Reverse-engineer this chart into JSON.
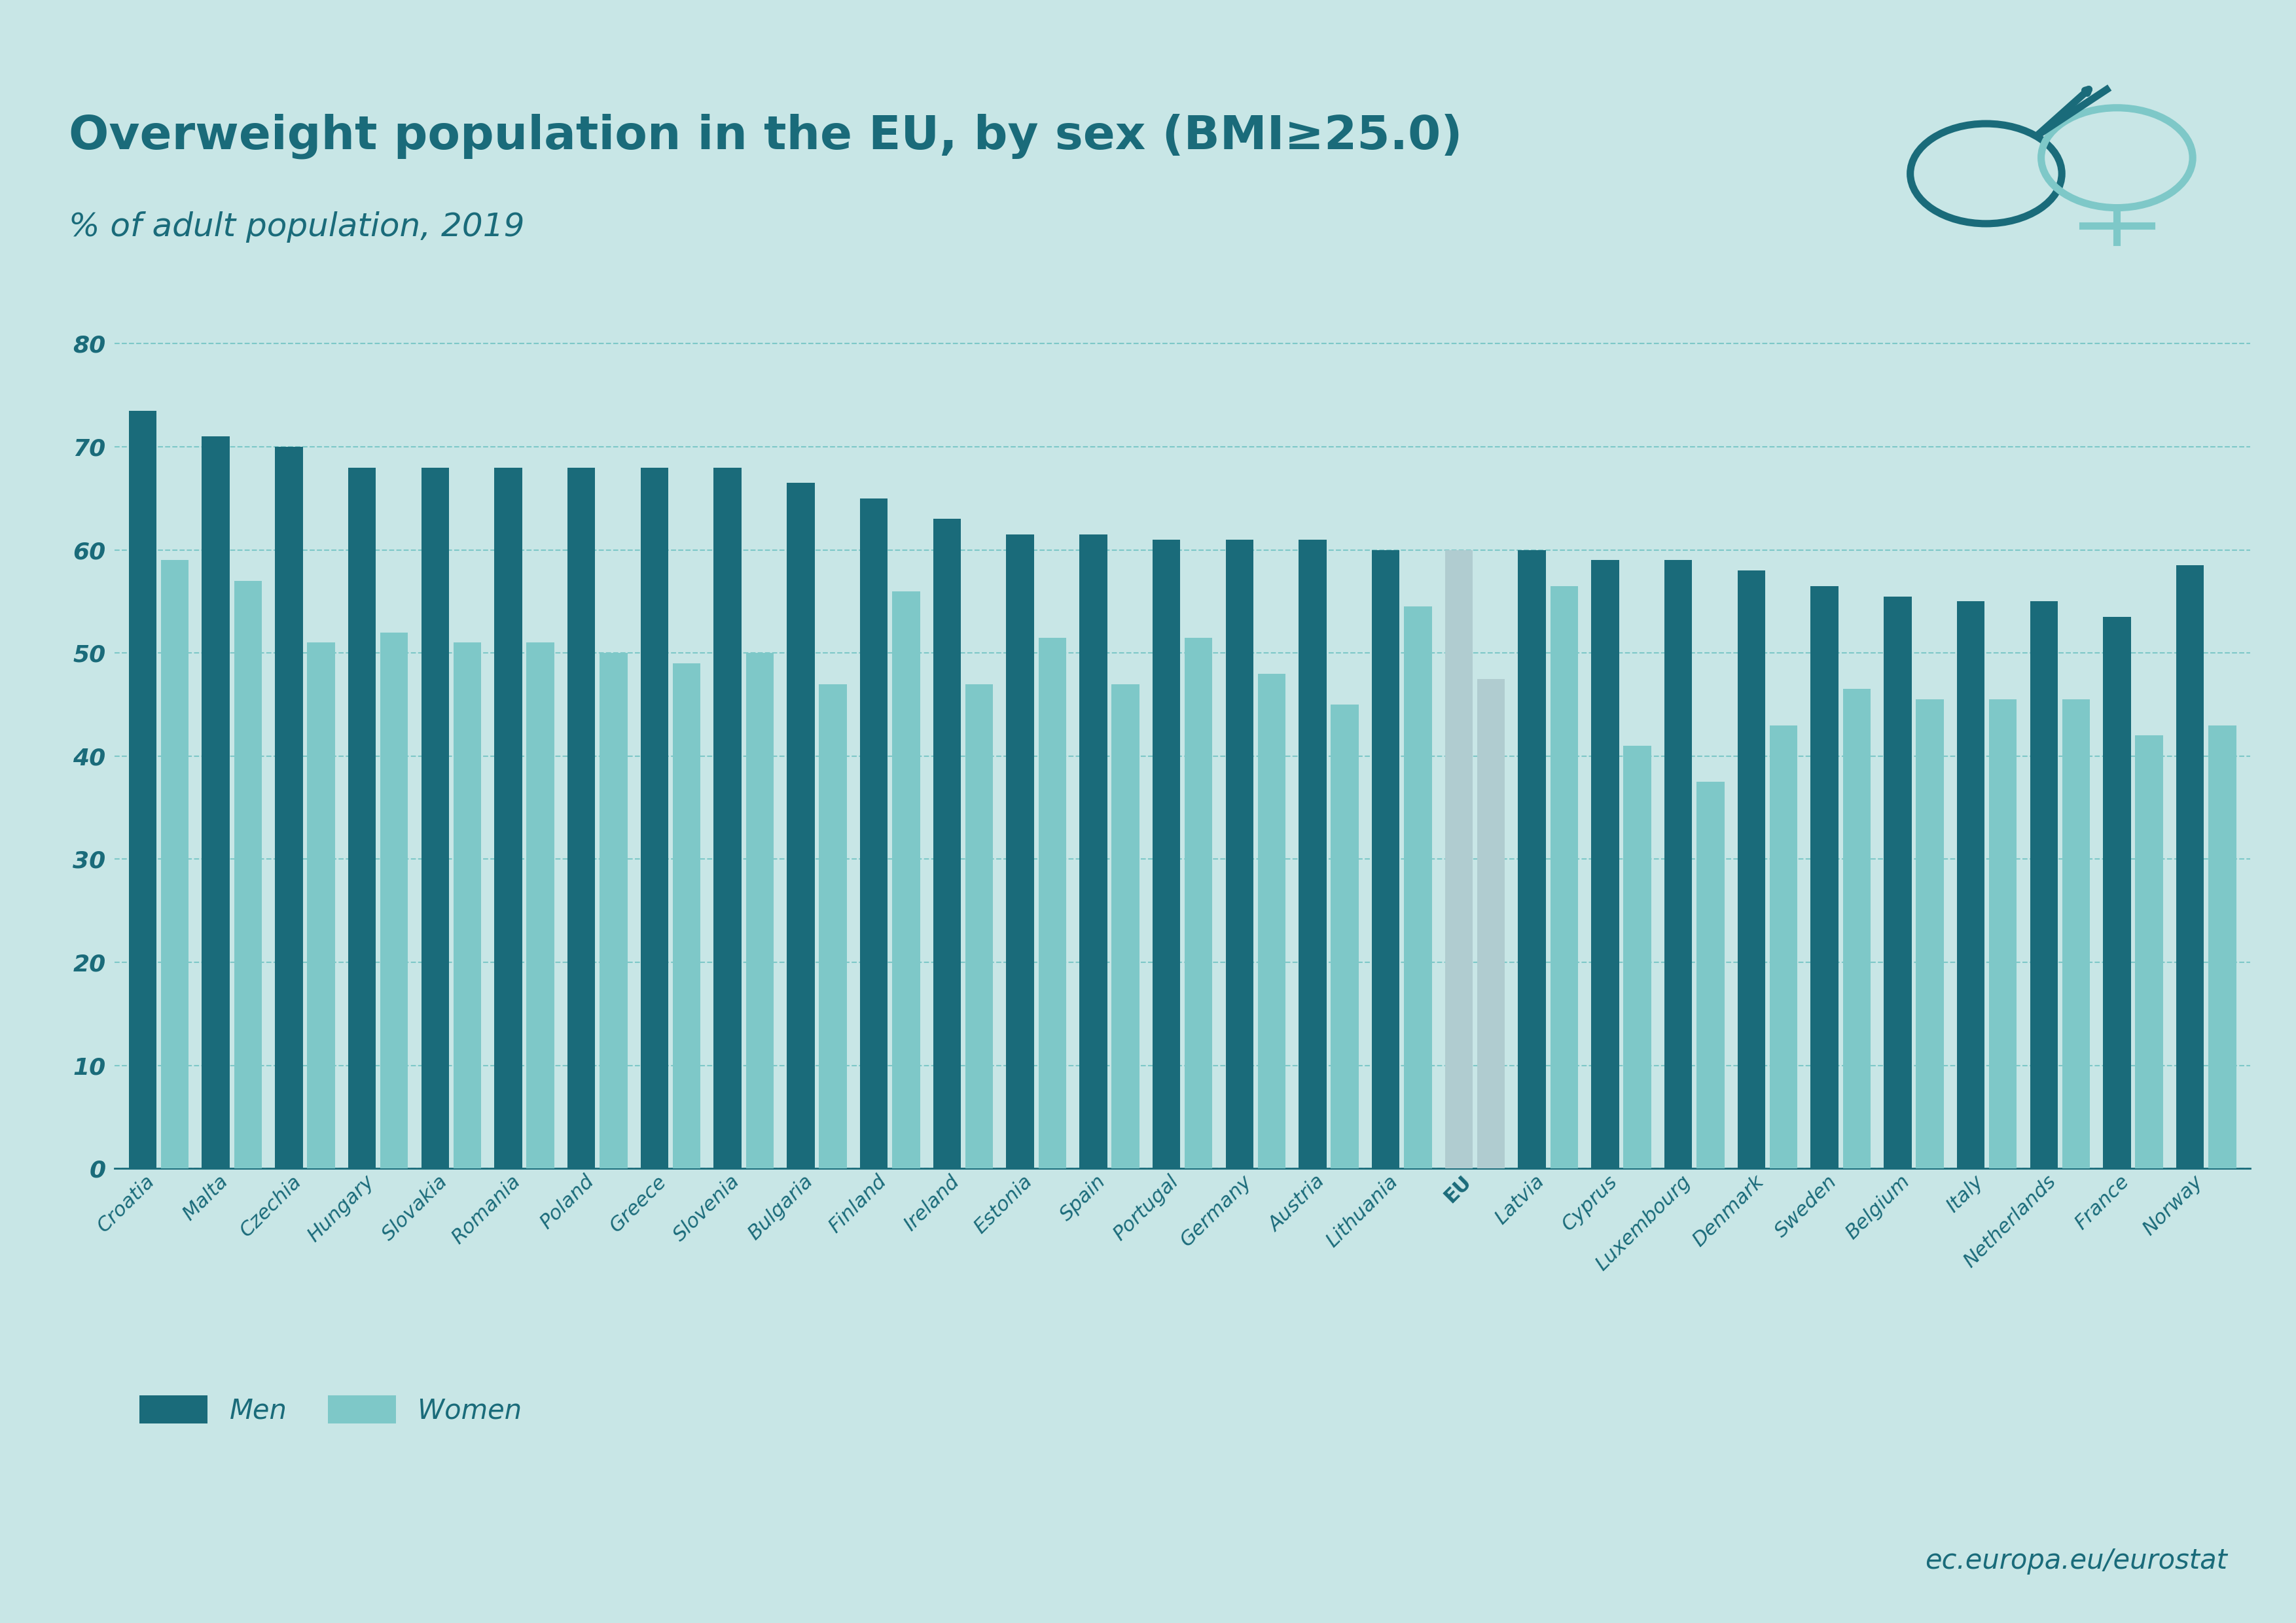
{
  "title": "Overweight population in the EU, by sex (BMI≥25.0)",
  "subtitle": "% of adult population, 2019",
  "background_color": "#c8e6e6",
  "bar_color_men": "#1a6b7a",
  "bar_color_women": "#7ec8c8",
  "bar_color_eu_men": "#b0ccd0",
  "bar_color_eu_women": "#b0ccd0",
  "title_color": "#1a6b7a",
  "axis_color": "#1a6b7a",
  "grid_color": "#7ec8c8",
  "categories": [
    "Croatia",
    "Malta",
    "Czechia",
    "Hungary",
    "Slovakia",
    "Romania",
    "Poland",
    "Greece",
    "Slovenia",
    "Bulgaria",
    "Finland",
    "Ireland",
    "Estonia",
    "Spain",
    "Portugal",
    "Germany",
    "Austria",
    "Lithuania",
    "EU",
    "Latvia",
    "Cyprus",
    "Luxembourg",
    "Denmark",
    "Sweden",
    "Belgium",
    "Italy",
    "Netherlands",
    "France",
    "Norway"
  ],
  "men_values": [
    73.5,
    71.0,
    70.0,
    68.0,
    68.0,
    68.0,
    68.0,
    68.0,
    68.0,
    66.5,
    65.0,
    63.0,
    61.5,
    61.5,
    61.0,
    61.0,
    61.0,
    60.0,
    60.0,
    60.0,
    59.0,
    59.0,
    58.0,
    56.5,
    55.5,
    55.0,
    55.0,
    53.5,
    58.5
  ],
  "women_values": [
    59.0,
    57.0,
    51.0,
    52.0,
    51.0,
    51.0,
    50.0,
    49.0,
    50.0,
    47.0,
    56.0,
    47.0,
    51.5,
    47.0,
    51.5,
    48.0,
    45.0,
    54.5,
    47.5,
    56.5,
    41.0,
    37.5,
    43.0,
    46.5,
    45.5,
    45.5,
    45.5,
    42.0,
    43.0
  ],
  "eu_index": 18,
  "ylim": [
    0,
    85
  ],
  "yticks": [
    0,
    10,
    20,
    30,
    40,
    50,
    60,
    70,
    80
  ],
  "legend_men": "Men",
  "legend_women": "Women",
  "footer_text": "ec.europa.eu/eurostat",
  "footer_color": "#1a6b7a"
}
